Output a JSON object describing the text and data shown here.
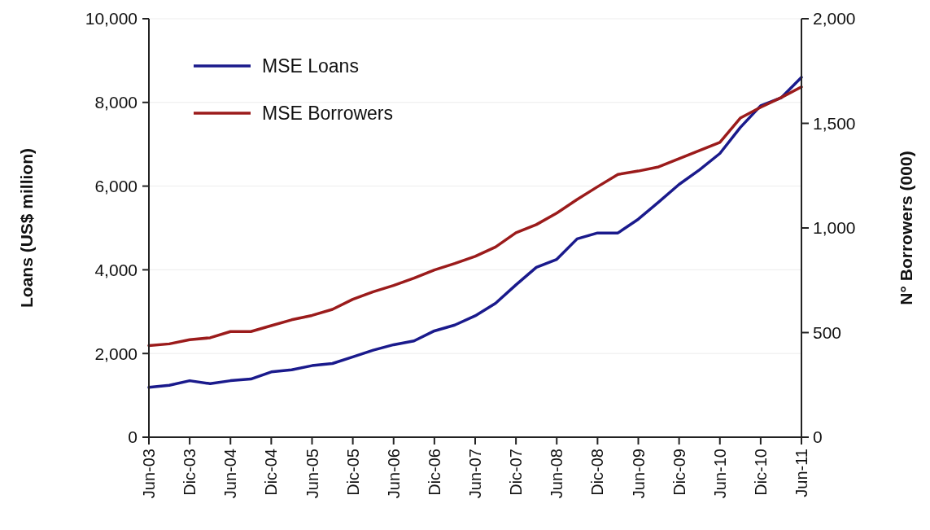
{
  "chart_data": {
    "type": "line",
    "ylabel": "Loans (US$ million)",
    "y2label": "N° Borrowers (000)",
    "categories": [
      "Jun-03",
      null,
      "Dic-03",
      null,
      "Jun-04",
      null,
      "Dic-04",
      null,
      "Jun-05",
      null,
      "Dic-05",
      null,
      "Jun-06",
      null,
      "Dic-06",
      null,
      "Jun-07",
      null,
      "Dic-07",
      null,
      "Jun-08",
      null,
      "Dic-08",
      null,
      "Jun-09",
      null,
      "Dic-09",
      null,
      "Jun-10",
      null,
      "Dic-10",
      null,
      "Jun-11"
    ],
    "series": [
      {
        "name": "MSE Loans",
        "color": "#1a1a8c",
        "values": [
          1190,
          1240,
          1350,
          1280,
          1350,
          1390,
          1560,
          1610,
          1710,
          1760,
          1920,
          2080,
          2210,
          2300,
          2540,
          2680,
          2900,
          3200,
          3640,
          4060,
          4250,
          4740,
          4880,
          4880,
          5210,
          5620,
          6040,
          6390,
          6780,
          7400,
          7920,
          8110,
          8600
        ]
      },
      {
        "name": "MSE Borrowers",
        "color": "#9b1b1b",
        "axis": "y2",
        "values": [
          438,
          446,
          466,
          475,
          505,
          505,
          533,
          561,
          582,
          611,
          659,
          695,
          725,
          760,
          799,
          830,
          864,
          909,
          977,
          1016,
          1071,
          1136,
          1197,
          1256,
          1272,
          1292,
          1331,
          1370,
          1409,
          1525,
          1577,
          1623,
          1674
        ]
      }
    ],
    "ylim": [
      0,
      10000
    ],
    "yticks": [
      0,
      {
        "value": 2000,
        "label": "2,000"
      },
      {
        "value": 4000,
        "label": "4,000"
      },
      {
        "value": 6000,
        "label": "6,000"
      },
      {
        "value": 8000,
        "label": "8,000"
      },
      {
        "value": 10000,
        "label": "10,000"
      }
    ],
    "y2lim": [
      0,
      2000
    ],
    "y2ticks": [
      0,
      500,
      {
        "value": 1000,
        "label": "1,000"
      },
      {
        "value": 1500,
        "label": "1,500"
      },
      {
        "value": 2000,
        "label": "2,000"
      }
    ],
    "grid": "y",
    "legend": "top left",
    "marker": "none",
    "line_style": "solid"
  }
}
